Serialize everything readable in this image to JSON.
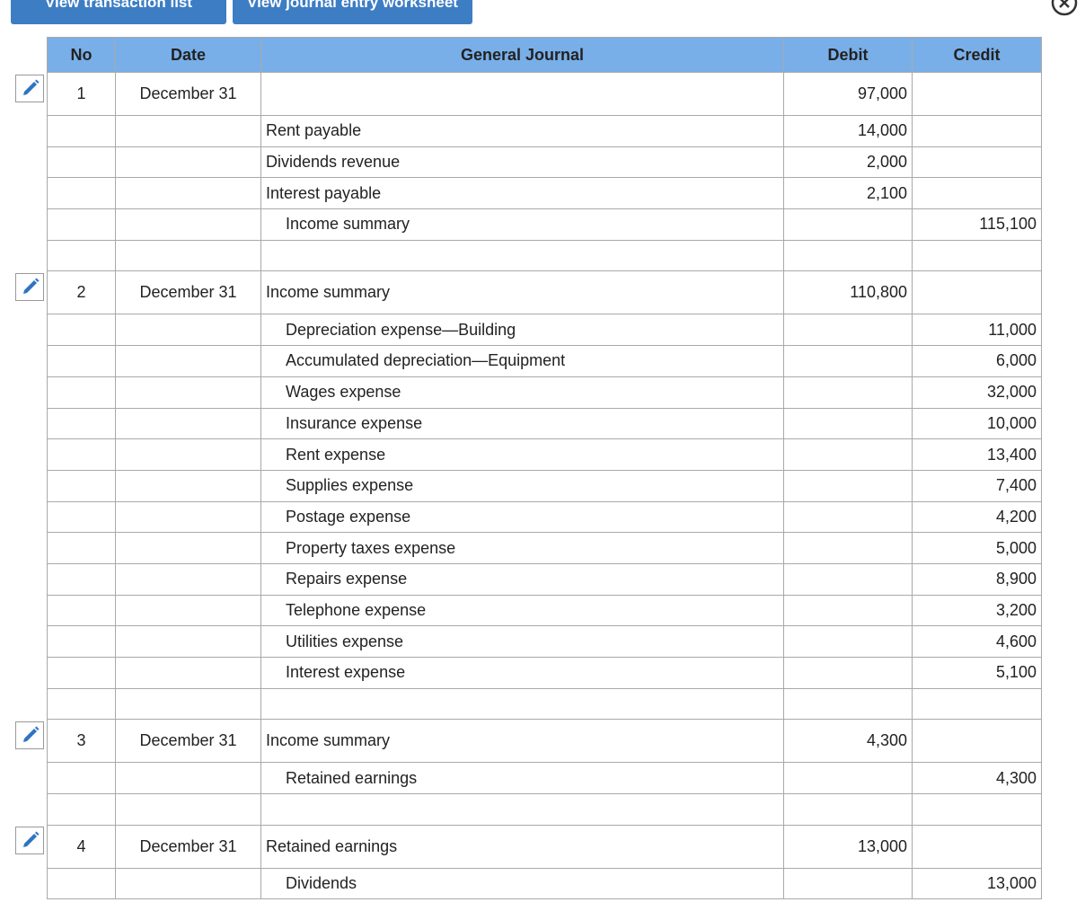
{
  "buttons": [
    "View transaction list",
    "View journal entry worksheet"
  ],
  "table": {
    "headers": [
      "No",
      "Date",
      "General Journal",
      "Debit",
      "Credit"
    ],
    "entries": [
      {
        "no": "1",
        "date": "December 31",
        "lines": [
          {
            "debit": "97,000"
          },
          {
            "account": "Rent payable",
            "debit": "14,000"
          },
          {
            "account": "Dividends revenue",
            "debit": "2,000"
          },
          {
            "account": "Interest payable",
            "debit": "2,100"
          },
          {
            "credit_account": "Income summary",
            "credit": "115,100"
          }
        ]
      },
      {
        "no": "2",
        "date": "December 31",
        "lines": [
          {
            "account": "Income summary",
            "debit": "110,800"
          },
          {
            "credit_account": "Depreciation expense—Building",
            "credit": "11,000"
          },
          {
            "credit_account": "Accumulated depreciation—Equipment",
            "credit": "6,000"
          },
          {
            "credit_account": "Wages expense",
            "credit": "32,000"
          },
          {
            "credit_account": "Insurance expense",
            "credit": "10,000"
          },
          {
            "credit_account": "Rent expense",
            "credit": "13,400"
          },
          {
            "credit_account": "Supplies expense",
            "credit": "7,400"
          },
          {
            "credit_account": "Postage expense",
            "credit": "4,200"
          },
          {
            "credit_account": "Property taxes expense",
            "credit": "5,000"
          },
          {
            "credit_account": "Repairs expense",
            "credit": "8,900"
          },
          {
            "credit_account": "Telephone expense",
            "credit": "3,200"
          },
          {
            "credit_account": "Utilities expense",
            "credit": "4,600"
          },
          {
            "credit_account": "Interest expense",
            "credit": "5,100"
          }
        ]
      },
      {
        "no": "3",
        "date": "December 31",
        "lines": [
          {
            "account": "Income summary",
            "debit": "4,300"
          },
          {
            "credit_account": "Retained earnings",
            "credit": "4,300"
          }
        ]
      },
      {
        "no": "4",
        "date": "December 31",
        "lines": [
          {
            "account": "Retained earnings",
            "debit": "13,000"
          },
          {
            "credit_account": "Dividends",
            "credit": "13,000"
          }
        ]
      }
    ]
  }
}
